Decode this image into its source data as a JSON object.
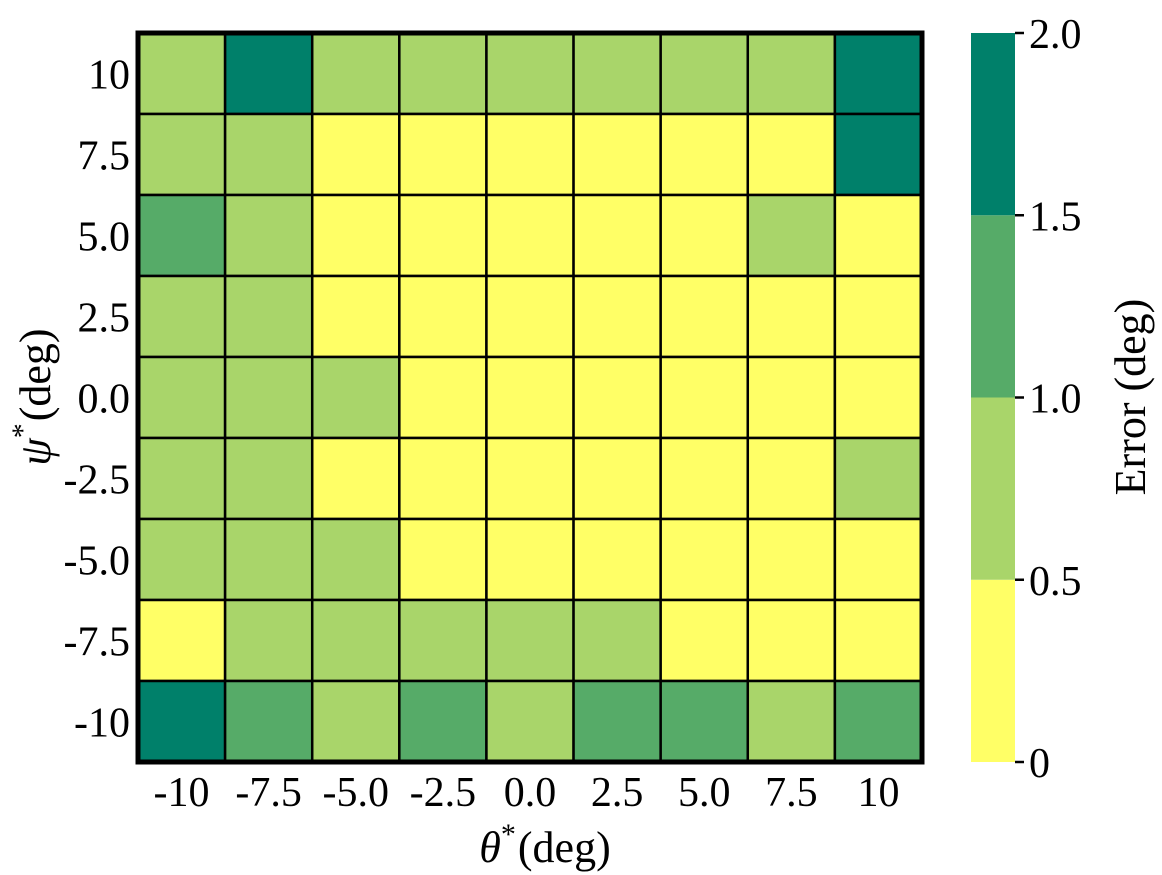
{
  "chart_data": {
    "type": "heatmap",
    "xlabel_symbol": "θ",
    "xlabel_sup": "*",
    "xlabel_unit": "(deg)",
    "ylabel_symbol": "ψ",
    "ylabel_sup": "*",
    "ylabel_unit": "(deg)",
    "x_ticks": [
      "-10",
      "-7.5",
      "-5.0",
      "-2.5",
      "0.0",
      "2.5",
      "5.0",
      "7.5",
      "10"
    ],
    "y_ticks": [
      "10",
      "7.5",
      "5.0",
      "2.5",
      "0.0",
      "-2.5",
      "-5.0",
      "-7.5",
      "-10"
    ],
    "colorbar": {
      "label": "Error (deg)",
      "ticks": [
        "0",
        "0.5",
        "1.0",
        "1.5",
        "2.0"
      ],
      "range": [
        0,
        2.0
      ],
      "bins": [
        {
          "min": 0.0,
          "max": 0.5,
          "color": "#ffff66"
        },
        {
          "min": 0.5,
          "max": 1.0,
          "color": "#a9d56a"
        },
        {
          "min": 1.0,
          "max": 1.5,
          "color": "#56ab68"
        },
        {
          "min": 1.5,
          "max": 2.0,
          "color": "#00806a"
        }
      ]
    },
    "level_labels": [
      "0–0.5",
      "0.5–1.0",
      "1.0–1.5",
      "1.5–2.0"
    ],
    "levels": [
      [
        1,
        3,
        1,
        1,
        1,
        1,
        1,
        1,
        3
      ],
      [
        1,
        1,
        0,
        0,
        0,
        0,
        0,
        0,
        3
      ],
      [
        2,
        1,
        0,
        0,
        0,
        0,
        0,
        1,
        0
      ],
      [
        1,
        1,
        0,
        0,
        0,
        0,
        0,
        0,
        0
      ],
      [
        1,
        1,
        1,
        0,
        0,
        0,
        0,
        0,
        0
      ],
      [
        1,
        1,
        0,
        0,
        0,
        0,
        0,
        0,
        1
      ],
      [
        1,
        1,
        1,
        0,
        0,
        0,
        0,
        0,
        0
      ],
      [
        0,
        1,
        1,
        1,
        1,
        1,
        0,
        0,
        0
      ],
      [
        3,
        2,
        1,
        2,
        1,
        2,
        2,
        1,
        2
      ]
    ]
  }
}
